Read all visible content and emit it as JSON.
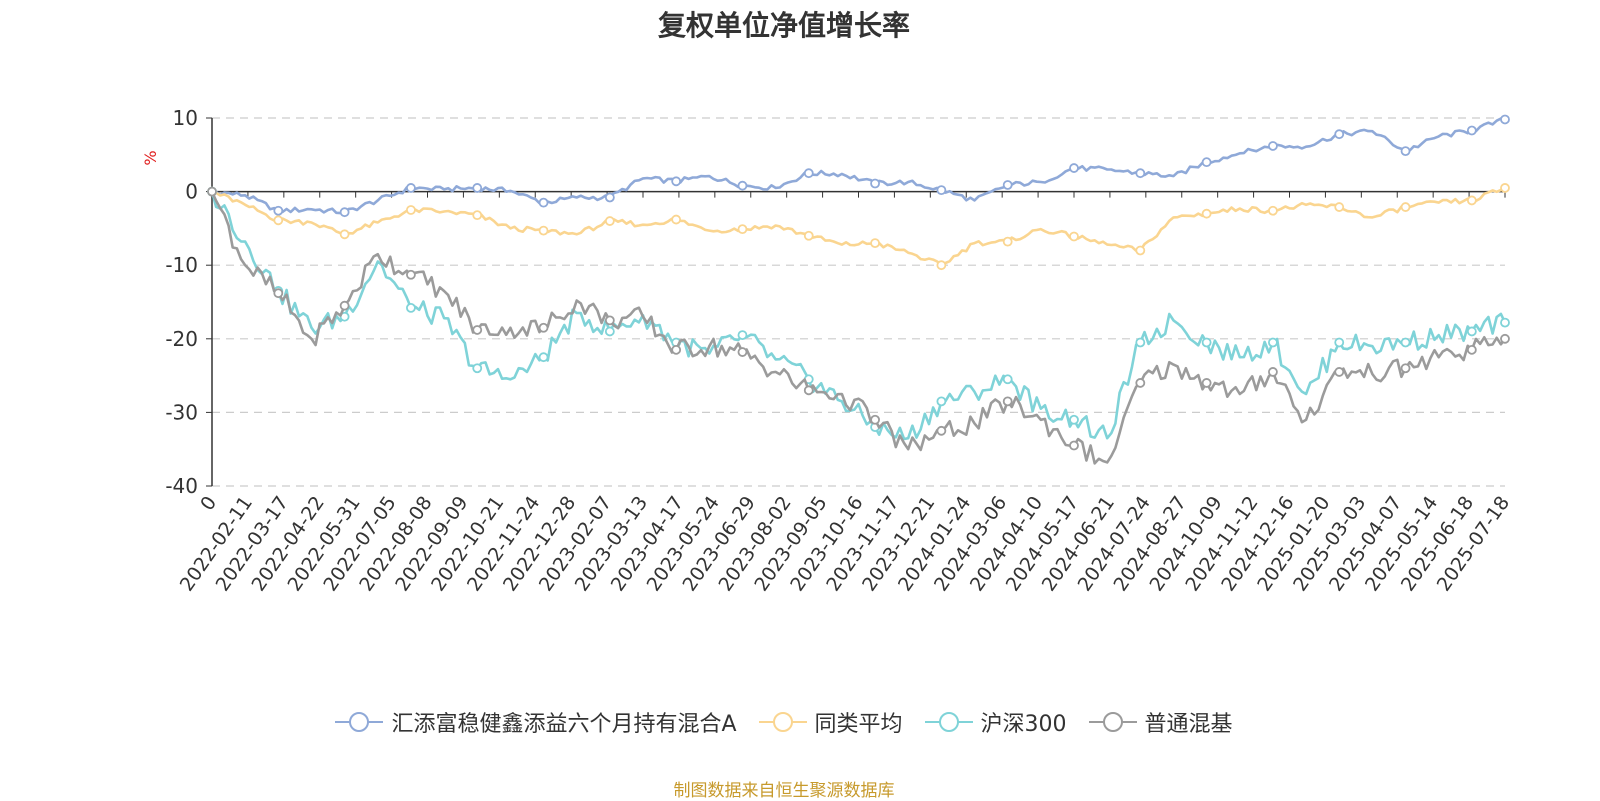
{
  "chart_data": {
    "type": "line",
    "title": "复权单位净值增长率",
    "ylabel": "%",
    "ylim": [
      -40,
      10
    ],
    "yticks": [
      "10",
      "0",
      "-10",
      "-20",
      "-30",
      "-40"
    ],
    "xticks": [
      "0",
      "2022-02-11",
      "2022-03-17",
      "2022-04-22",
      "2022-05-31",
      "2022-07-05",
      "2022-08-08",
      "2022-09-09",
      "2022-10-21",
      "2022-11-24",
      "2022-12-28",
      "2023-02-07",
      "2023-03-13",
      "2023-04-17",
      "2023-05-24",
      "2023-06-29",
      "2023-08-02",
      "2023-09-05",
      "2023-10-16",
      "2023-11-17",
      "2023-12-21",
      "2024-01-24",
      "2024-03-06",
      "2024-04-10",
      "2024-05-17",
      "2024-06-21",
      "2024-07-24",
      "2024-08-27",
      "2024-10-09",
      "2024-11-12",
      "2024-12-16",
      "2025-01-20",
      "2025-03-03",
      "2025-04-07",
      "2025-05-14",
      "2025-06-18",
      "2025-07-18"
    ],
    "grid": "horizontal-dashed",
    "legend_position": "bottom",
    "series": [
      {
        "name": "汇添富稳健鑫添益六个月持有混合A",
        "color": "#8fa9d8",
        "values": [
          0,
          -0.5,
          -2.6,
          -2.4,
          -2.8,
          -1.2,
          0.5,
          0.3,
          0.5,
          0.1,
          -1.5,
          -0.8,
          -0.8,
          1.8,
          1.4,
          2.1,
          0.8,
          0.5,
          2.5,
          2.4,
          1.1,
          1.3,
          0.2,
          -1.2,
          0.9,
          1.3,
          3.2,
          3.0,
          2.5,
          2.1,
          4.0,
          5.2,
          6.2,
          6.1,
          7.8,
          8.2,
          5.5,
          7.5,
          8.3,
          9.8
        ]
      },
      {
        "name": "同类平均",
        "color": "#fad590",
        "values": [
          0,
          -1.8,
          -3.9,
          -4.2,
          -5.8,
          -4.2,
          -2.5,
          -2.7,
          -3.2,
          -5.0,
          -5.3,
          -5.8,
          -4.0,
          -4.5,
          -3.8,
          -5.3,
          -5.1,
          -4.6,
          -6.0,
          -7.2,
          -7.0,
          -8.3,
          -10.0,
          -7.0,
          -6.8,
          -5.1,
          -6.1,
          -7.2,
          -8.0,
          -3.5,
          -3.0,
          -2.3,
          -2.6,
          -1.8,
          -2.1,
          -3.5,
          -2.1,
          -1.5,
          -1.2,
          0.5
        ]
      },
      {
        "name": "沪深300",
        "color": "#7fd3d8",
        "values": [
          0,
          -6.8,
          -13.5,
          -18.5,
          -17.0,
          -9.5,
          -15.8,
          -17.2,
          -24.0,
          -25.5,
          -22.5,
          -16.5,
          -19.0,
          -16.8,
          -20.5,
          -22.0,
          -19.5,
          -22.8,
          -25.5,
          -28.5,
          -32.0,
          -33.5,
          -28.5,
          -27.2,
          -25.5,
          -29.5,
          -31.0,
          -33.5,
          -20.5,
          -17.5,
          -20.5,
          -22.5,
          -20.5,
          -27.5,
          -20.5,
          -21.0,
          -20.5,
          -19.5,
          -19.0,
          -17.8
        ]
      },
      {
        "name": "普通混基",
        "color": "#9b9b9b",
        "values": [
          0,
          -10.0,
          -13.8,
          -20.0,
          -15.5,
          -8.5,
          -11.3,
          -13.5,
          -18.8,
          -18.5,
          -18.5,
          -14.8,
          -17.5,
          -17.0,
          -21.5,
          -21.0,
          -21.8,
          -24.5,
          -27.0,
          -27.5,
          -31.0,
          -35.0,
          -32.5,
          -31.5,
          -28.5,
          -31.0,
          -34.5,
          -36.8,
          -26.0,
          -23.5,
          -26.0,
          -27.5,
          -24.5,
          -31.0,
          -24.5,
          -24.8,
          -24.0,
          -22.5,
          -21.5,
          -20.0
        ]
      }
    ]
  },
  "footer": {
    "source": "制图数据来自恒生聚源数据库"
  }
}
